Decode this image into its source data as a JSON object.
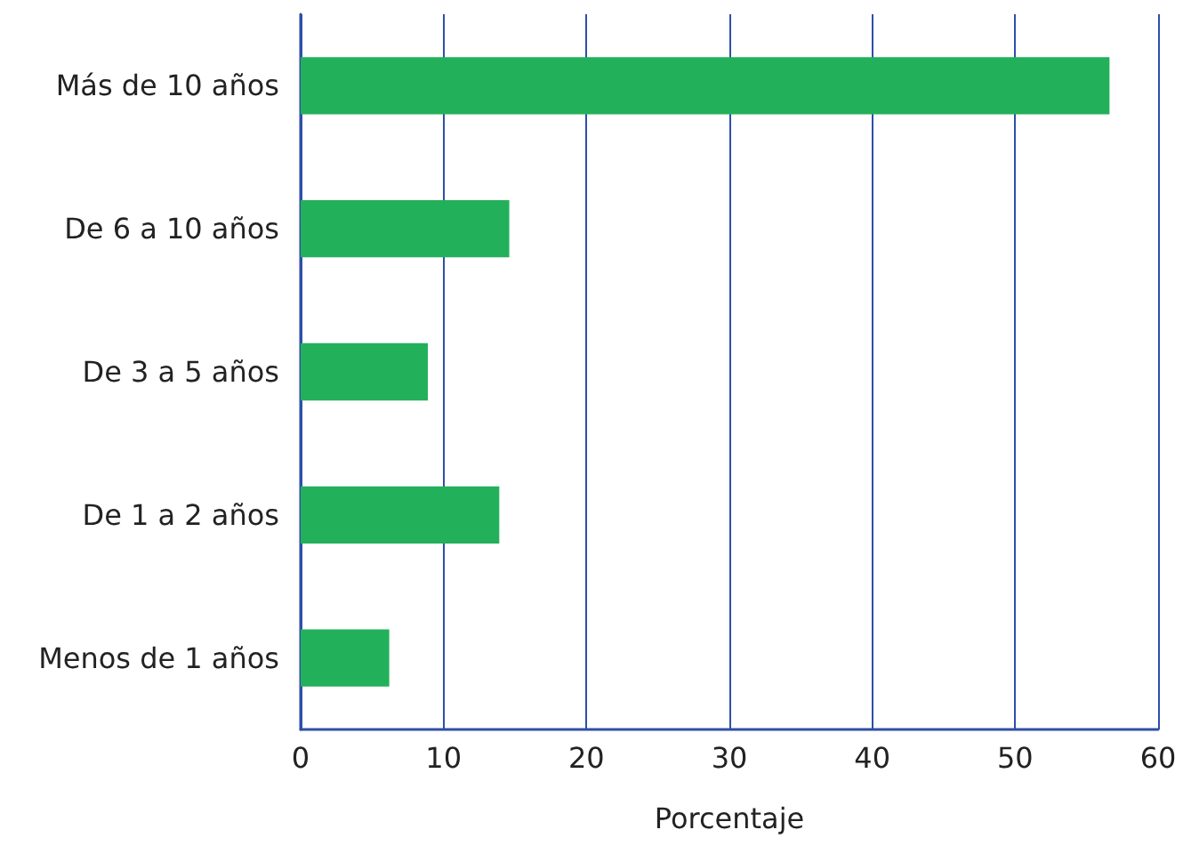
{
  "chart_data": {
    "type": "bar",
    "orientation": "horizontal",
    "xlabel": "Porcentaje",
    "categories": [
      "Más de 10 años",
      "De 6 a 10 años",
      "De 3 a 5 años",
      "De 1 a 2 años",
      "Menos de 1 años"
    ],
    "values": [
      56.6,
      14.6,
      8.9,
      13.9,
      6.2
    ],
    "color": "#23b05a",
    "xlim": [
      0,
      60
    ],
    "xticks": [
      0,
      10,
      20,
      30,
      40,
      50,
      60
    ],
    "grid": "x"
  }
}
